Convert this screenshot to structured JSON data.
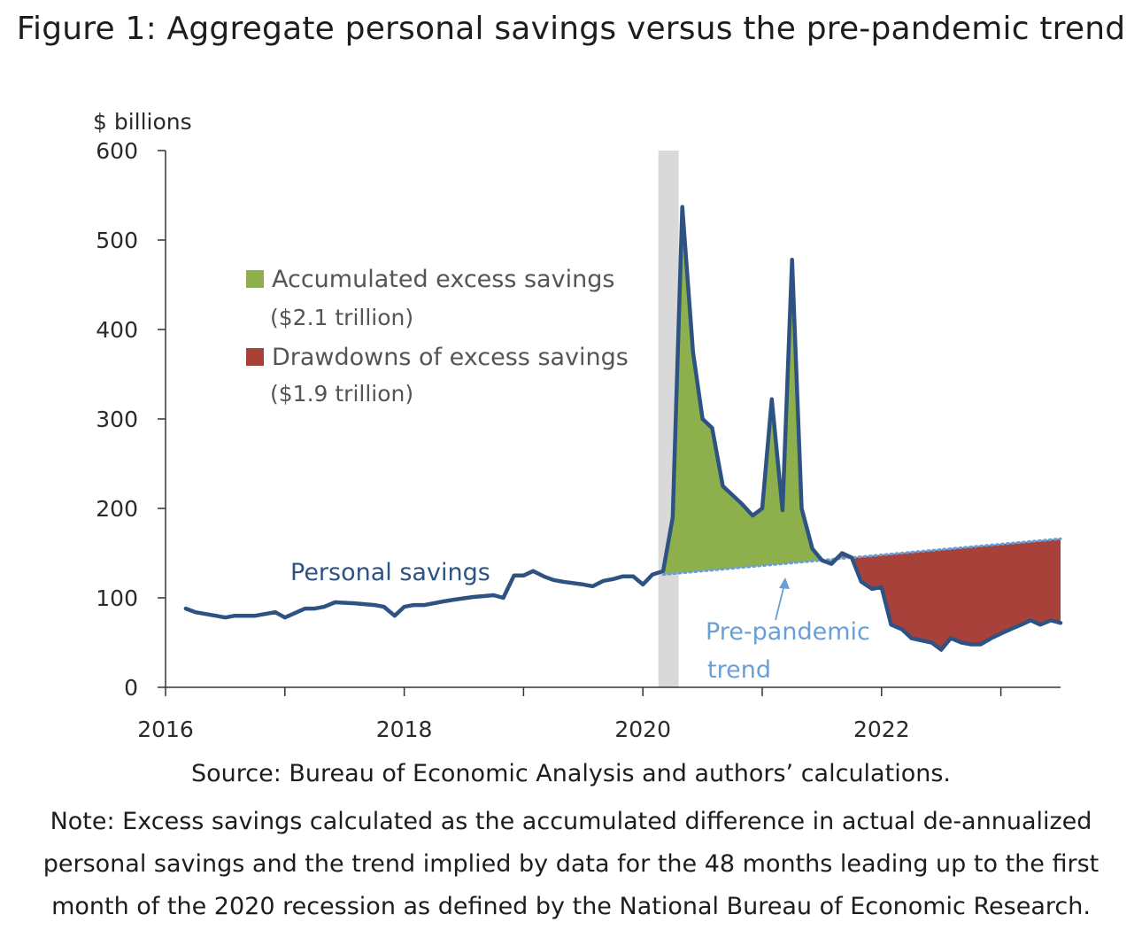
{
  "figure": {
    "title": "Figure 1: Aggregate personal savings versus the pre-pandemic trend",
    "source": "Source: Bureau of Economic Analysis and authors’ calculations.",
    "note": "Note: Excess savings calculated as the accumulated difference in actual de-annualized personal savings and the trend implied by data for the 48 months leading up to the first month of the 2020 recession as defined by the National Bureau of Economic Research."
  },
  "chart_data": {
    "type": "line",
    "ylabel": "$ billions",
    "ylim": [
      0,
      600
    ],
    "yticks": [
      0,
      100,
      200,
      300,
      400,
      500,
      600
    ],
    "xlim": [
      2016.0,
      2023.5
    ],
    "xticks": [
      2016,
      2017,
      2018,
      2019,
      2020,
      2021,
      2022,
      2023
    ],
    "xtick_labels": [
      {
        "value": 2016,
        "label": "2016"
      },
      {
        "value": 2018,
        "label": "2018"
      },
      {
        "value": 2020,
        "label": "2020"
      },
      {
        "value": 2022,
        "label": "2022"
      }
    ],
    "grid": false,
    "recession": {
      "start": 2020.13,
      "end": 2020.3,
      "color": "#d9d9d9"
    },
    "series": [
      {
        "name": "Personal savings",
        "color": "#2e5382",
        "x": [
          2016.17,
          2016.25,
          2016.42,
          2016.5,
          2016.58,
          2016.75,
          2016.92,
          2017.0,
          2017.17,
          2017.25,
          2017.33,
          2017.42,
          2017.58,
          2017.75,
          2017.83,
          2017.92,
          2018.0,
          2018.08,
          2018.17,
          2018.33,
          2018.42,
          2018.58,
          2018.75,
          2018.83,
          2018.92,
          2019.0,
          2019.08,
          2019.17,
          2019.25,
          2019.33,
          2019.5,
          2019.58,
          2019.67,
          2019.75,
          2019.83,
          2019.92,
          2020.0,
          2020.08,
          2020.17,
          2020.25,
          2020.33,
          2020.42,
          2020.5,
          2020.58,
          2020.67,
          2020.75,
          2020.83,
          2020.92,
          2021.0,
          2021.08,
          2021.17,
          2021.25,
          2021.33,
          2021.42,
          2021.5,
          2021.58,
          2021.67,
          2021.75,
          2021.83,
          2021.92,
          2022.0,
          2022.08,
          2022.17,
          2022.25,
          2022.42,
          2022.5,
          2022.58,
          2022.67,
          2022.75,
          2022.83,
          2022.92,
          2023.0,
          2023.08,
          2023.17,
          2023.25,
          2023.33,
          2023.42,
          2023.5
        ],
        "y": [
          88,
          84,
          80,
          78,
          80,
          80,
          84,
          78,
          88,
          88,
          90,
          95,
          94,
          92,
          90,
          80,
          90,
          92,
          92,
          96,
          98,
          101,
          103,
          100,
          125,
          125,
          130,
          124,
          120,
          118,
          115,
          113,
          119,
          121,
          124,
          124,
          115,
          126,
          130,
          190,
          537,
          375,
          300,
          290,
          225,
          215,
          205,
          192,
          200,
          322,
          198,
          478,
          200,
          155,
          142,
          138,
          150,
          145,
          118,
          110,
          112,
          70,
          65,
          55,
          50,
          42,
          55,
          50,
          48,
          48,
          55,
          60,
          65,
          70,
          75,
          70,
          75,
          72
        ]
      },
      {
        "name": "Pre-pandemic trend",
        "color": "#6a9fd6",
        "x": [
          2020.17,
          2021.75,
          2023.5
        ],
        "y": [
          126,
          145,
          166
        ]
      }
    ],
    "areas": [
      {
        "name": "Accumulated excess savings",
        "value_label": "($2.1 trillion)",
        "color": "#8db04d",
        "from": 2020.17,
        "to": 2021.67
      },
      {
        "name": "Drawdowns of excess savings",
        "value_label": "($1.9 trillion)",
        "color": "#a8413a",
        "from": 2021.67,
        "to": 2023.5
      }
    ],
    "annotations": [
      {
        "text": "Personal savings",
        "color": "#2e5382"
      },
      {
        "text_lines": [
          "Pre-pandemic",
          "trend"
        ],
        "color": "#6a9fd6"
      }
    ]
  }
}
